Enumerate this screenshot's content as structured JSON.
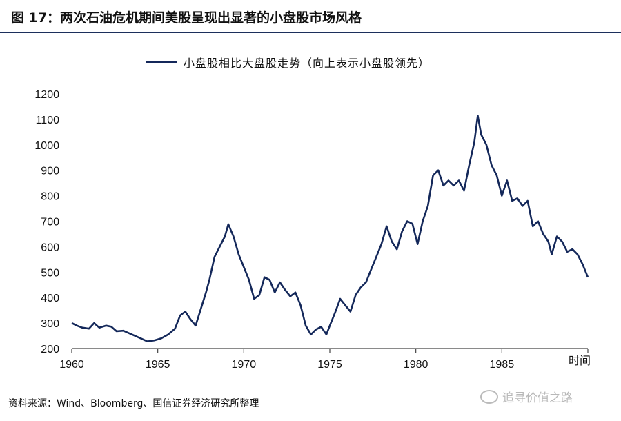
{
  "header": {
    "title": "图 17：两次石油危机期间美股呈现出显著的小盘股市场风格"
  },
  "footer": {
    "source": "资料来源：Wind、Bloomberg、国信证券经济研究所整理"
  },
  "watermark": {
    "text": "追寻价值之路",
    "icon": "wechat-icon"
  },
  "colors": {
    "series": "#14285a",
    "title_rule": "#1c2f5c"
  },
  "chart_data": {
    "type": "line",
    "title": "",
    "xlabel": "时间",
    "ylabel": "",
    "ylim": [
      200,
      1200
    ],
    "xlim": [
      1960,
      1990
    ],
    "yticks": [
      200,
      300,
      400,
      500,
      600,
      700,
      800,
      900,
      1000,
      1100,
      1200
    ],
    "xticks": [
      1960,
      1965,
      1970,
      1975,
      1980,
      1985
    ],
    "grid": false,
    "legend": "top-center",
    "series": [
      {
        "name": "小盘股相比大盘股走势（向上表示小盘股领先）",
        "x": [
          1960.0,
          1960.3,
          1960.6,
          1961.0,
          1961.3,
          1961.6,
          1962.0,
          1962.3,
          1962.6,
          1963.0,
          1963.5,
          1964.0,
          1964.4,
          1964.8,
          1965.2,
          1965.6,
          1966.0,
          1966.3,
          1966.6,
          1966.9,
          1967.2,
          1967.5,
          1967.8,
          1968.0,
          1968.3,
          1968.6,
          1968.9,
          1969.1,
          1969.4,
          1969.7,
          1970.0,
          1970.3,
          1970.6,
          1970.9,
          1971.2,
          1971.5,
          1971.8,
          1972.1,
          1972.4,
          1972.7,
          1973.0,
          1973.3,
          1973.6,
          1973.9,
          1974.2,
          1974.5,
          1974.8,
          1975.0,
          1975.3,
          1975.6,
          1975.9,
          1976.2,
          1976.5,
          1976.8,
          1977.1,
          1977.4,
          1977.7,
          1978.0,
          1978.3,
          1978.6,
          1978.9,
          1979.2,
          1979.5,
          1979.8,
          1980.1,
          1980.4,
          1980.7,
          1981.0,
          1981.3,
          1981.6,
          1981.9,
          1982.2,
          1982.5,
          1982.8,
          1983.1,
          1983.4,
          1983.6,
          1983.8,
          1984.1,
          1984.4,
          1984.7,
          1985.0,
          1985.3,
          1985.6,
          1985.9,
          1986.2,
          1986.5,
          1986.8,
          1987.1,
          1987.4,
          1987.7,
          1987.9,
          1988.2,
          1988.5,
          1988.8,
          1989.1,
          1989.4,
          1989.7,
          1990.0
        ],
        "values": [
          300,
          290,
          282,
          278,
          300,
          282,
          290,
          286,
          268,
          270,
          255,
          240,
          228,
          232,
          240,
          255,
          278,
          330,
          345,
          315,
          290,
          355,
          420,
          470,
          560,
          600,
          640,
          688,
          640,
          570,
          520,
          470,
          395,
          410,
          480,
          470,
          420,
          460,
          430,
          405,
          420,
          370,
          290,
          255,
          275,
          285,
          255,
          290,
          340,
          395,
          370,
          345,
          410,
          440,
          460,
          510,
          560,
          610,
          680,
          620,
          590,
          660,
          700,
          690,
          610,
          700,
          760,
          880,
          900,
          840,
          860,
          840,
          860,
          820,
          920,
          1010,
          1115,
          1040,
          1000,
          920,
          880,
          800,
          860,
          780,
          790,
          760,
          780,
          680,
          700,
          650,
          620,
          570,
          640,
          620,
          580,
          590,
          570,
          530,
          480
        ]
      }
    ]
  }
}
